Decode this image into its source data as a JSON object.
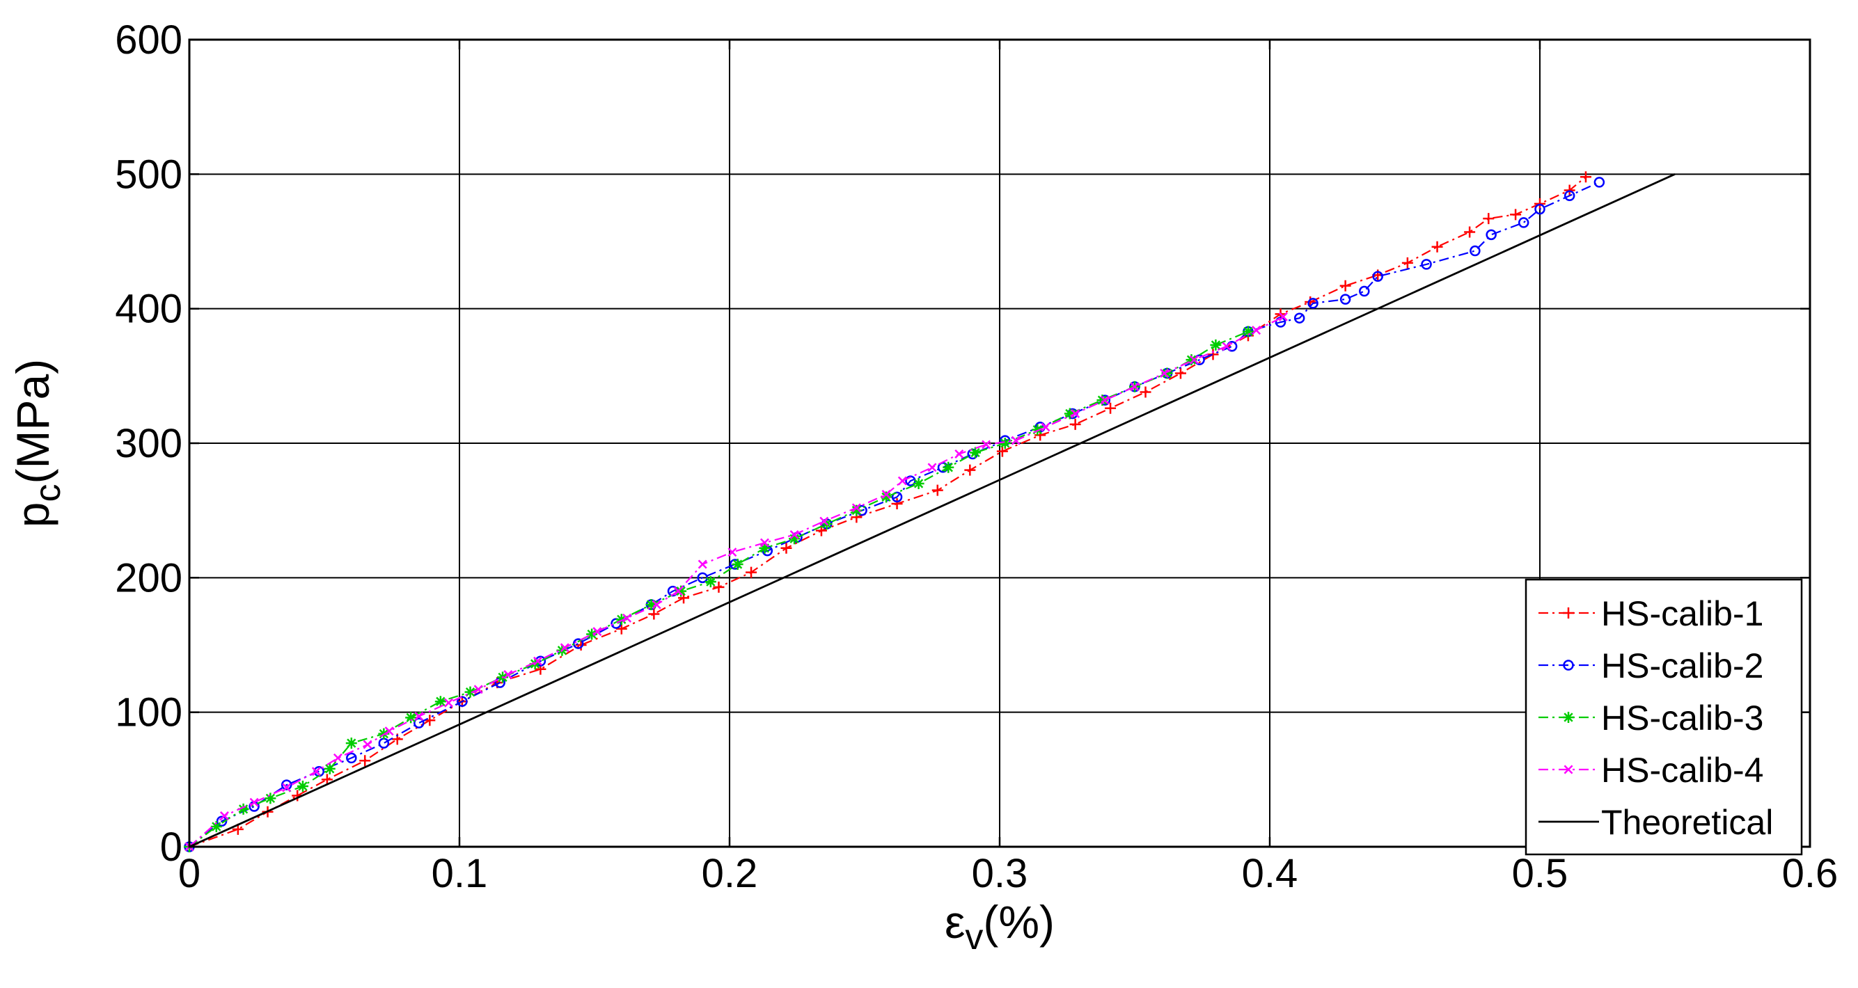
{
  "chart_data": {
    "type": "line",
    "title": "",
    "xlabel": {
      "symbol": "ε",
      "subscript": "v",
      "unit": "(%)"
    },
    "ylabel": {
      "symbol": "p",
      "subscript": "c",
      "unit": "(MPa)"
    },
    "xlim": [
      0,
      0.6
    ],
    "ylim": [
      0,
      600
    ],
    "xticks": [
      0,
      0.1,
      0.2,
      0.3,
      0.4,
      0.5,
      0.6
    ],
    "yticks": [
      0,
      100,
      200,
      300,
      400,
      500,
      600
    ],
    "xtick_labels": [
      "0",
      "0.1",
      "0.2",
      "0.3",
      "0.4",
      "0.5",
      "0.6"
    ],
    "ytick_labels": [
      "0",
      "100",
      "200",
      "300",
      "400",
      "500",
      "600"
    ],
    "grid": true,
    "legend_position": "bottom-right",
    "series": [
      {
        "name": "HS-calib-1",
        "color": "#ff0000",
        "marker": "plus",
        "line_style": "dashdot",
        "x": [
          0,
          0.018,
          0.029,
          0.04,
          0.051,
          0.065,
          0.077,
          0.089,
          0.101,
          0.114,
          0.13,
          0.145,
          0.16,
          0.172,
          0.183,
          0.196,
          0.208,
          0.221,
          0.234,
          0.247,
          0.262,
          0.277,
          0.289,
          0.301,
          0.315,
          0.328,
          0.341,
          0.354,
          0.367,
          0.379,
          0.392,
          0.404,
          0.415,
          0.428,
          0.44,
          0.451,
          0.462,
          0.474,
          0.481,
          0.491,
          0.5,
          0.511,
          0.517
        ],
        "y": [
          0,
          13,
          26,
          38,
          50,
          64,
          80,
          94,
          108,
          122,
          132,
          150,
          162,
          173,
          185,
          193,
          204,
          222,
          235,
          245,
          255,
          265,
          280,
          294,
          306,
          314,
          326,
          338,
          352,
          366,
          380,
          396,
          405,
          417,
          425,
          434,
          446,
          457,
          467,
          470,
          478,
          488,
          498
        ]
      },
      {
        "name": "HS-calib-2",
        "color": "#0000ff",
        "marker": "circle",
        "line_style": "dashdot",
        "x": [
          0,
          0.012,
          0.024,
          0.036,
          0.048,
          0.06,
          0.072,
          0.085,
          0.101,
          0.115,
          0.13,
          0.144,
          0.158,
          0.171,
          0.179,
          0.19,
          0.202,
          0.214,
          0.225,
          0.236,
          0.249,
          0.262,
          0.267,
          0.279,
          0.29,
          0.302,
          0.315,
          0.327,
          0.339,
          0.35,
          0.362,
          0.374,
          0.386,
          0.392,
          0.404,
          0.411,
          0.416,
          0.428,
          0.435,
          0.44,
          0.458,
          0.476,
          0.482,
          0.494,
          0.5,
          0.511,
          0.522
        ],
        "y": [
          0,
          19,
          30,
          46,
          56,
          66,
          77,
          92,
          108,
          122,
          138,
          151,
          166,
          180,
          190,
          200,
          210,
          220,
          230,
          240,
          250,
          260,
          272,
          282,
          292,
          302,
          312,
          322,
          332,
          342,
          352,
          362,
          372,
          383,
          390,
          393,
          404,
          407,
          413,
          424,
          433,
          443,
          455,
          464,
          474,
          484,
          494
        ]
      },
      {
        "name": "HS-calib-3",
        "color": "#00cc00",
        "marker": "asterisk",
        "line_style": "dashdot",
        "x": [
          0,
          0.01,
          0.02,
          0.03,
          0.042,
          0.052,
          0.06,
          0.072,
          0.082,
          0.093,
          0.104,
          0.116,
          0.128,
          0.138,
          0.149,
          0.16,
          0.171,
          0.182,
          0.193,
          0.203,
          0.213,
          0.224,
          0.236,
          0.247,
          0.258,
          0.27,
          0.281,
          0.291,
          0.302,
          0.314,
          0.326,
          0.338,
          0.35,
          0.362,
          0.371,
          0.38,
          0.392
        ],
        "y": [
          0,
          15,
          28,
          36,
          45,
          58,
          77,
          84,
          96,
          108,
          115,
          126,
          136,
          146,
          158,
          169,
          180,
          190,
          197,
          210,
          222,
          229,
          240,
          250,
          260,
          270,
          282,
          293,
          300,
          310,
          322,
          332,
          342,
          352,
          362,
          373,
          383
        ]
      },
      {
        "name": "HS-calib-4",
        "color": "#ff00ff",
        "marker": "x",
        "line_style": "dashdot",
        "x": [
          0,
          0.013,
          0.024,
          0.036,
          0.047,
          0.055,
          0.066,
          0.074,
          0.085,
          0.096,
          0.107,
          0.118,
          0.129,
          0.139,
          0.151,
          0.162,
          0.173,
          0.181,
          0.19,
          0.201,
          0.213,
          0.224,
          0.235,
          0.247,
          0.258,
          0.264,
          0.275,
          0.285,
          0.295,
          0.306,
          0.317,
          0.328,
          0.339,
          0.35,
          0.361,
          0.372,
          0.384,
          0.395,
          0.405
        ],
        "y": [
          0,
          23,
          33,
          44,
          56,
          66,
          76,
          86,
          97,
          107,
          117,
          128,
          138,
          148,
          160,
          170,
          180,
          190,
          210,
          219,
          226,
          232,
          242,
          252,
          262,
          272,
          282,
          292,
          299,
          302,
          312,
          322,
          332,
          342,
          352,
          362,
          372,
          384,
          394
        ]
      },
      {
        "name": "Theoretical",
        "color": "#000000",
        "marker": "none",
        "line_style": "solid",
        "x": [
          0,
          0.55
        ],
        "y": [
          0,
          500
        ]
      }
    ]
  }
}
